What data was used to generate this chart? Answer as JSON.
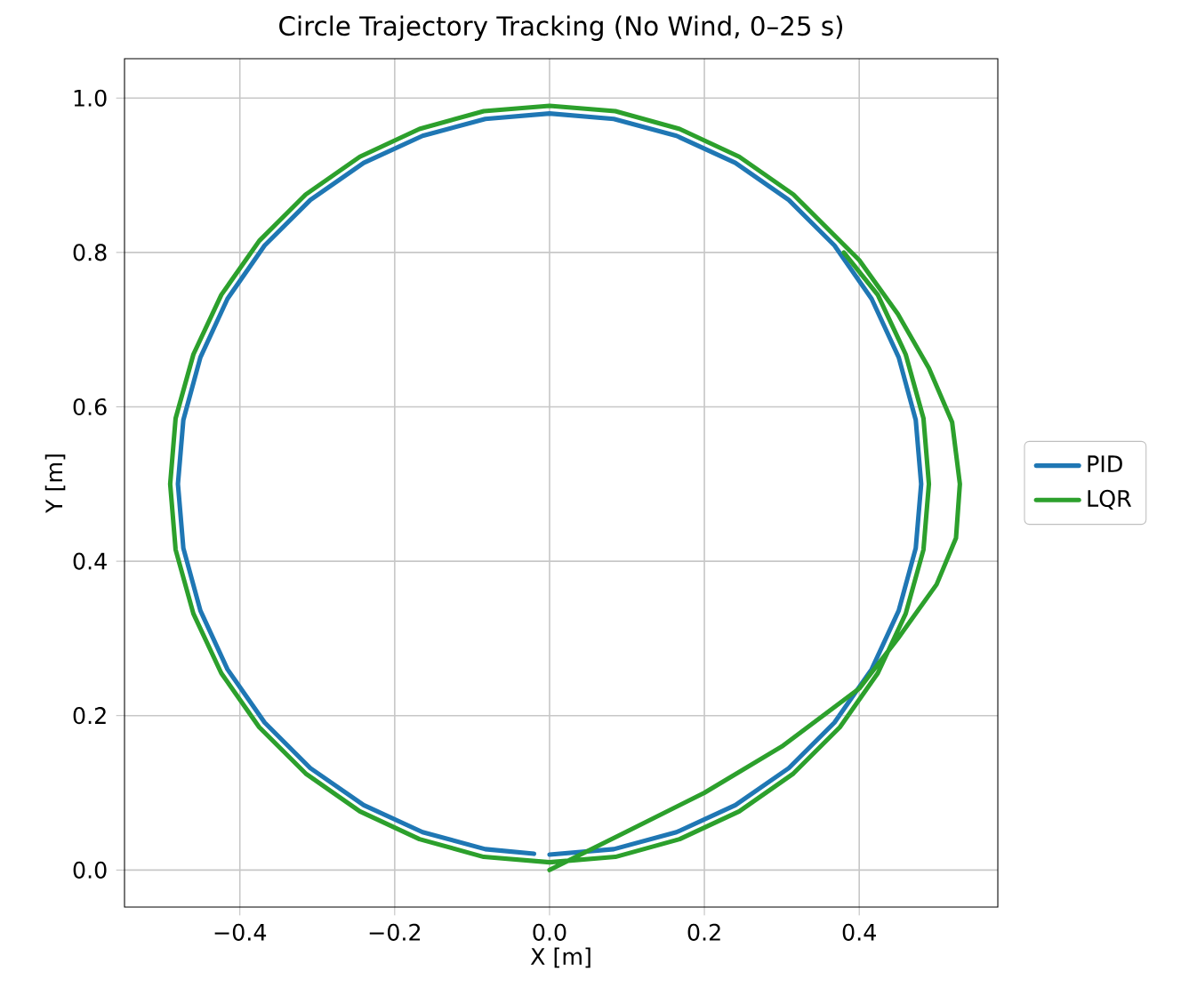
{
  "chart_data": {
    "type": "line",
    "title": "Circle Trajectory Tracking (No Wind, 0–25 s)",
    "xlabel": "X [m]",
    "ylabel": "Y [m]",
    "xlim": [
      -0.549,
      0.579
    ],
    "ylim": [
      -0.048,
      1.051
    ],
    "xticks": [
      {
        "value": -0.4,
        "label": "−0.4"
      },
      {
        "value": -0.2,
        "label": "−0.2"
      },
      {
        "value": 0,
        "label": "0.0"
      },
      {
        "value": 0.2,
        "label": "0.2"
      },
      {
        "value": 0.4,
        "label": "0.4"
      }
    ],
    "yticks": [
      {
        "value": 0,
        "label": "0.0"
      },
      {
        "value": 0.2,
        "label": "0.2"
      },
      {
        "value": 0.4,
        "label": "0.4"
      },
      {
        "value": 0.6,
        "label": "0.6"
      },
      {
        "value": 0.8,
        "label": "0.8"
      },
      {
        "value": 1.0,
        "label": "1.0"
      }
    ],
    "grid": true,
    "legend": "right",
    "line_style": "solid",
    "marker": "none",
    "series": [
      {
        "name": "PID",
        "color": "#1f77b4",
        "x": [
          0,
          0.083,
          0.164,
          0.24,
          0.309,
          0.368,
          0.416,
          0.451,
          0.473,
          0.48,
          0.473,
          0.451,
          0.416,
          0.368,
          0.309,
          0.24,
          0.164,
          0.083,
          0,
          -0.083,
          -0.164,
          -0.24,
          -0.309,
          -0.368,
          -0.416,
          -0.451,
          -0.473,
          -0.48,
          -0.473,
          -0.451,
          -0.416,
          -0.368,
          -0.309,
          -0.24,
          -0.164,
          -0.083,
          -0.02
        ],
        "values": [
          0.02,
          0.027,
          0.049,
          0.084,
          0.132,
          0.191,
          0.26,
          0.336,
          0.417,
          0.5,
          0.583,
          0.664,
          0.74,
          0.809,
          0.868,
          0.916,
          0.951,
          0.973,
          0.98,
          0.973,
          0.951,
          0.916,
          0.868,
          0.809,
          0.74,
          0.664,
          0.583,
          0.5,
          0.417,
          0.336,
          0.26,
          0.191,
          0.132,
          0.084,
          0.049,
          0.027,
          0.021
        ]
      },
      {
        "name": "LQR",
        "color": "#2ca02c",
        "x": [
          0,
          0.1,
          0.2,
          0.3,
          0.4,
          0.45,
          0.5,
          0.525,
          0.53,
          0.52,
          0.49,
          0.45,
          0.4,
          0.315,
          0.245,
          0.168,
          0.085,
          0,
          -0.085,
          -0.168,
          -0.245,
          -0.315,
          -0.375,
          -0.424,
          -0.46,
          -0.483,
          -0.49,
          -0.483,
          -0.46,
          -0.424,
          -0.375,
          -0.315,
          -0.245,
          -0.168,
          -0.085,
          0,
          0.085,
          0.168,
          0.245,
          0.315,
          0.375,
          0.424,
          0.46,
          0.483,
          0.49,
          0.483,
          0.46,
          0.424,
          0.38
        ],
        "values": [
          0,
          0.05,
          0.1,
          0.16,
          0.235,
          0.3,
          0.37,
          0.43,
          0.5,
          0.58,
          0.65,
          0.72,
          0.79,
          0.875,
          0.924,
          0.96,
          0.983,
          0.99,
          0.983,
          0.96,
          0.924,
          0.875,
          0.815,
          0.745,
          0.668,
          0.585,
          0.5,
          0.415,
          0.332,
          0.255,
          0.185,
          0.125,
          0.076,
          0.04,
          0.017,
          0.01,
          0.017,
          0.04,
          0.076,
          0.125,
          0.185,
          0.255,
          0.332,
          0.415,
          0.5,
          0.585,
          0.668,
          0.745,
          0.8
        ]
      }
    ]
  }
}
